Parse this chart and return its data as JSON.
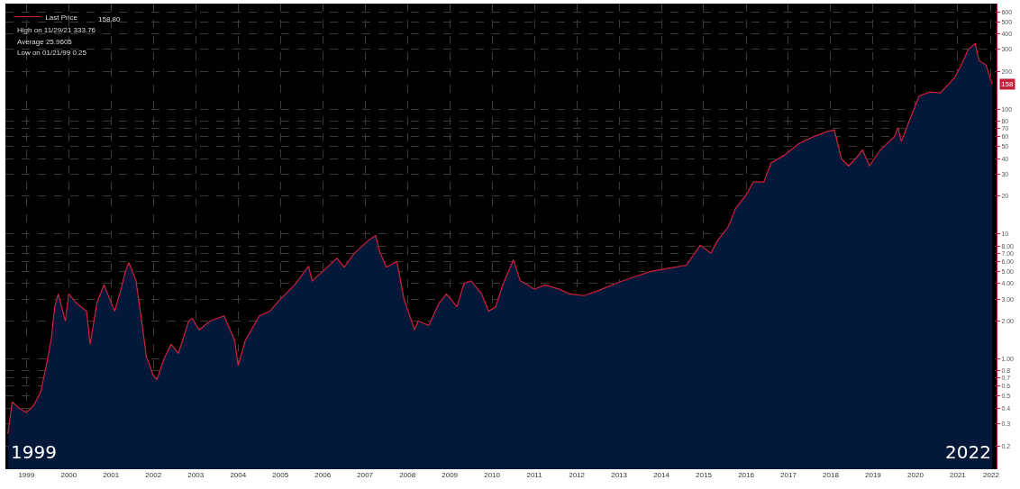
{
  "chart_data": {
    "type": "area",
    "log": "y",
    "grid": true,
    "legend": "top left",
    "line_style": "solid",
    "marker": "none",
    "xlim": [
      "1999-01-01",
      "2022-06-01"
    ],
    "xticks": [
      {
        "value": "1999-07-01",
        "label": "1999"
      },
      {
        "value": "2000-07-01",
        "label": "2000"
      },
      {
        "value": "2001-07-01",
        "label": "2001"
      },
      {
        "value": "2002-07-01",
        "label": "2002"
      },
      {
        "value": "2003-07-01",
        "label": "2003"
      },
      {
        "value": "2004-07-01",
        "label": "2004"
      },
      {
        "value": "2005-07-01",
        "label": "2005"
      },
      {
        "value": "2006-07-01",
        "label": "2006"
      },
      {
        "value": "2007-07-01",
        "label": "2007"
      },
      {
        "value": "2008-07-01",
        "label": "2008"
      },
      {
        "value": "2009-07-01",
        "label": "2009"
      },
      {
        "value": "2010-07-01",
        "label": "2010"
      },
      {
        "value": "2011-07-01",
        "label": "2011"
      },
      {
        "value": "2012-07-01",
        "label": "2012"
      },
      {
        "value": "2013-07-01",
        "label": "2013"
      },
      {
        "value": "2014-07-01",
        "label": "2014"
      },
      {
        "value": "2015-07-01",
        "label": "2015"
      },
      {
        "value": "2016-07-01",
        "label": "2016"
      },
      {
        "value": "2017-07-01",
        "label": "2017"
      },
      {
        "value": "2018-07-01",
        "label": "2018"
      },
      {
        "value": "2019-07-01",
        "label": "2019"
      },
      {
        "value": "2020-07-01",
        "label": "2020"
      },
      {
        "value": "2021-07-01",
        "label": "2021"
      },
      {
        "value": "2022-04-15",
        "label": "2022"
      }
    ],
    "ylim": [
      0.13,
      700
    ],
    "yticks": [
      600,
      500,
      400,
      300,
      200,
      100,
      80,
      70,
      60,
      50,
      40,
      30,
      20,
      10,
      {
        "value": 8,
        "label": "8.00"
      },
      {
        "value": 7,
        "label": "7.00"
      },
      {
        "value": 6,
        "label": "6.00"
      },
      {
        "value": 5,
        "label": "5.00"
      },
      {
        "value": 4,
        "label": "4.00"
      },
      {
        "value": 3,
        "label": "3.00"
      },
      {
        "value": 2,
        "label": "2.00"
      },
      {
        "value": 1,
        "label": "1.00"
      },
      0.8,
      0.7,
      0.6,
      0.5,
      0.4,
      0.3,
      0.2
    ],
    "x": [
      "1999-01-22",
      "1999-03",
      "1999-05",
      "1999-07",
      "1999-09",
      "1999-11",
      "1999-12-20",
      "2000-02",
      "2000-03",
      "2000-04",
      "2000-06",
      "2000-07",
      "2000-09",
      "2000-12",
      "2001-01",
      "2001-03",
      "2001-05",
      "2001-06",
      "2001-08",
      "2001-10",
      "2001-11",
      "2001-12",
      "2002-02",
      "2002-04",
      "2002-05",
      "2002-07",
      "2002-08",
      "2002-10",
      "2002-12",
      "2003-02",
      "2003-05",
      "2003-06",
      "2003-08",
      "2003-11",
      "2004-03",
      "2004-06",
      "2004-07",
      "2004-09",
      "2005-01",
      "2005-04",
      "2005-07",
      "2005-11",
      "2006-03",
      "2006-04",
      "2006-07",
      "2006-11",
      "2007-01",
      "2007-04",
      "2007-08",
      "2007-10",
      "2007-11",
      "2008-01",
      "2008-04",
      "2008-06",
      "2008-09",
      "2008-10",
      "2009-01",
      "2009-04",
      "2009-06",
      "2009-09",
      "2009-11",
      "2010-01",
      "2010-04",
      "2010-06",
      "2010-08",
      "2010-10",
      "2011-01",
      "2011-03",
      "2011-05",
      "2011-07",
      "2011-10",
      "2012-02",
      "2012-05",
      "2012-09",
      "2013-01",
      "2013-06",
      "2013-11",
      "2014-04",
      "2014-09",
      "2015-02",
      "2015-06",
      "2015-09",
      "2015-11",
      "2016-02",
      "2016-04",
      "2016-07",
      "2016-09",
      "2016-12",
      "2017-02",
      "2017-06",
      "2017-10",
      "2018-02",
      "2018-06",
      "2018-08",
      "2018-10",
      "2018-12",
      "2019-02",
      "2019-04",
      "2019-06",
      "2019-09",
      "2020-01",
      "2020-02",
      "2020-03",
      "2020-06",
      "2020-08",
      "2020-11",
      "2021-02",
      "2021-06",
      "2021-08",
      "2021-10",
      "2021-11-29",
      "2022-01",
      "2022-03",
      "2022-04-25"
    ],
    "series": [
      {
        "color": "#04193a",
        "values": [
          0.25,
          0.45,
          0.4,
          0.37,
          0.42,
          0.54,
          0.88,
          1.44,
          2.6,
          3.3,
          2.0,
          3.3,
          2.8,
          2.4,
          1.3,
          2.8,
          3.9,
          3.3,
          2.4,
          3.8,
          5.0,
          5.9,
          4.2,
          1.7,
          1.04,
          0.73,
          0.68,
          1.0,
          1.3,
          1.1,
          2.0,
          2.1,
          1.7,
          2.0,
          2.2,
          1.4,
          0.88,
          1.4,
          2.2,
          2.4,
          3.0,
          3.9,
          5.5,
          4.2,
          5.0,
          6.4,
          5.4,
          7.0,
          8.9,
          9.7,
          7.3,
          5.4,
          6.0,
          3.0,
          1.7,
          2.0,
          1.85,
          2.8,
          3.3,
          2.6,
          4.0,
          4.2,
          3.3,
          2.4,
          2.6,
          3.9,
          6.2,
          4.2,
          3.9,
          3.6,
          3.9,
          3.6,
          3.3,
          3.2,
          3.5,
          4.0,
          4.5,
          5.0,
          5.3,
          5.6,
          8.1,
          7.0,
          8.9,
          11.5,
          16,
          20.5,
          26,
          26,
          37,
          43,
          53,
          60,
          66,
          68,
          40,
          35,
          40,
          47,
          35,
          47,
          60,
          71,
          55,
          91,
          127,
          137,
          135,
          177,
          226,
          302,
          333.76,
          245,
          226,
          158.8
        ]
      },
      {
        "name": "Last Price",
        "type": "line",
        "color": "#d0203a",
        "values": [
          0.25,
          0.45,
          0.4,
          0.37,
          0.42,
          0.54,
          0.88,
          1.44,
          2.6,
          3.3,
          2.0,
          3.3,
          2.8,
          2.4,
          1.3,
          2.8,
          3.9,
          3.3,
          2.4,
          3.8,
          5.0,
          5.9,
          4.2,
          1.7,
          1.04,
          0.73,
          0.68,
          1.0,
          1.3,
          1.1,
          2.0,
          2.1,
          1.7,
          2.0,
          2.2,
          1.4,
          0.88,
          1.4,
          2.2,
          2.4,
          3.0,
          3.9,
          5.5,
          4.2,
          5.0,
          6.4,
          5.4,
          7.0,
          8.9,
          9.7,
          7.3,
          5.4,
          6.0,
          3.0,
          1.7,
          2.0,
          1.85,
          2.8,
          3.3,
          2.6,
          4.0,
          4.2,
          3.3,
          2.4,
          2.6,
          3.9,
          6.2,
          4.2,
          3.9,
          3.6,
          3.9,
          3.6,
          3.3,
          3.2,
          3.5,
          4.0,
          4.5,
          5.0,
          5.3,
          5.6,
          8.1,
          7.0,
          8.9,
          11.5,
          16,
          20.5,
          26,
          26,
          37,
          43,
          53,
          60,
          66,
          68,
          40,
          35,
          40,
          47,
          35,
          47,
          60,
          71,
          55,
          91,
          127,
          137,
          135,
          177,
          226,
          302,
          333.76,
          245,
          226,
          158.8
        ]
      }
    ],
    "annotations": [
      "158.80",
      "High on 11/29/21 333.76",
      "Average 25.9605",
      "Low on 01/21/99 0.25",
      "1999",
      "2022",
      {
        "text": "158",
        "x": "2022-04-25",
        "y": 158.8
      }
    ]
  }
}
